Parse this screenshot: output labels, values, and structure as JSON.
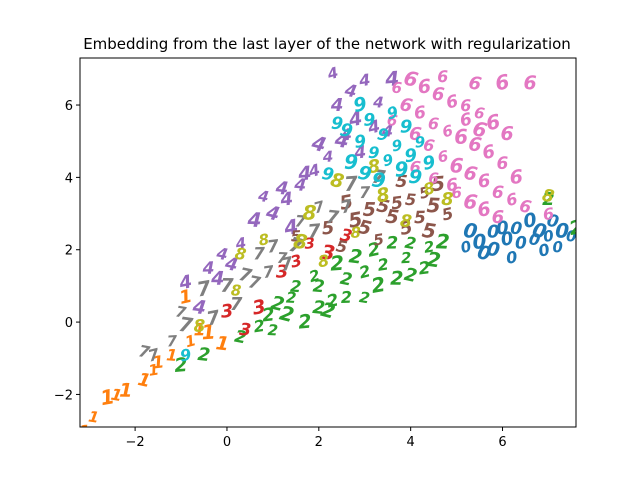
{
  "chart_data": {
    "type": "scatter",
    "title": "Embedding from the last layer of the network with regularization",
    "xlabel": "",
    "ylabel": "",
    "xlim": [
      -3.2,
      7.6
    ],
    "ylim": [
      -2.9,
      7.3
    ],
    "xticks": [
      -2,
      0,
      2,
      4,
      6
    ],
    "yticks": [
      -2,
      0,
      2,
      4,
      6
    ],
    "tick_labels_x": [
      "−2",
      "0",
      "2",
      "4",
      "6"
    ],
    "tick_labels_y": [
      "−2",
      "0",
      "2",
      "4",
      "6"
    ],
    "grid": false,
    "marker": "digit glyphs",
    "colors": {
      "0": "#1f77b4",
      "1": "#ff7f0e",
      "2": "#2ca02c",
      "3": "#d62728",
      "4": "#9467bd",
      "5": "#8c564b",
      "6": "#e377c2",
      "7": "#7f7f7f",
      "8": "#bcbd22",
      "9": "#17becf"
    },
    "series": [
      {
        "label": "0",
        "points": [
          [
            5.2,
            2.1
          ],
          [
            5.5,
            2.2
          ],
          [
            5.8,
            2.0
          ],
          [
            6.1,
            2.3
          ],
          [
            6.4,
            2.2
          ],
          [
            6.7,
            2.3
          ],
          [
            7.0,
            2.4
          ],
          [
            7.3,
            2.5
          ],
          [
            5.6,
            1.9
          ],
          [
            6.0,
            2.6
          ],
          [
            6.3,
            2.6
          ],
          [
            6.9,
            2.0
          ],
          [
            7.2,
            2.1
          ],
          [
            5.3,
            2.5
          ],
          [
            6.6,
            2.8
          ],
          [
            5.8,
            2.5
          ],
          [
            7.1,
            2.8
          ],
          [
            6.2,
            1.8
          ],
          [
            7.5,
            2.4
          ],
          [
            6.8,
            2.5
          ]
        ]
      },
      {
        "label": "1",
        "points": [
          [
            -3.1,
            -3.0
          ],
          [
            -2.9,
            -2.6
          ],
          [
            -2.6,
            -2.1
          ],
          [
            -2.2,
            -1.9
          ],
          [
            -1.8,
            -1.6
          ],
          [
            -1.5,
            -1.1
          ],
          [
            -1.2,
            -0.9
          ],
          [
            -0.8,
            -0.5
          ],
          [
            -0.4,
            -0.3
          ],
          [
            -0.1,
            -0.6
          ],
          [
            -0.9,
            0.7
          ],
          [
            -0.6,
            -0.2
          ],
          [
            -2.4,
            -2.0
          ],
          [
            -1.6,
            -1.3
          ]
        ]
      },
      {
        "label": "2",
        "points": [
          [
            0.3,
            -0.4
          ],
          [
            0.7,
            -0.1
          ],
          [
            1.0,
            -0.2
          ],
          [
            1.3,
            0.2
          ],
          [
            1.7,
            0.0
          ],
          [
            2.0,
            0.4
          ],
          [
            2.3,
            0.6
          ],
          [
            2.6,
            0.7
          ],
          [
            3.0,
            0.7
          ],
          [
            3.3,
            1.0
          ],
          [
            3.7,
            1.2
          ],
          [
            4.0,
            1.3
          ],
          [
            4.3,
            1.5
          ],
          [
            1.5,
            1.0
          ],
          [
            1.9,
            1.3
          ],
          [
            2.4,
            1.6
          ],
          [
            2.8,
            1.8
          ],
          [
            3.2,
            2.0
          ],
          [
            3.6,
            2.2
          ],
          [
            4.0,
            2.2
          ],
          [
            4.4,
            2.1
          ],
          [
            4.7,
            2.2
          ],
          [
            1.1,
            0.5
          ],
          [
            0.9,
            0.2
          ],
          [
            2.0,
            1.0
          ],
          [
            3.0,
            1.4
          ],
          [
            3.9,
            1.8
          ],
          [
            4.5,
            1.7
          ],
          [
            7.6,
            2.6
          ],
          [
            7.0,
            3.4
          ],
          [
            2.6,
            1.2
          ],
          [
            3.4,
            1.6
          ],
          [
            1.4,
            0.7
          ],
          [
            2.2,
            0.3
          ],
          [
            -1.0,
            -1.2
          ],
          [
            -0.5,
            -0.9
          ]
        ]
      },
      {
        "label": "3",
        "points": [
          [
            0.0,
            0.3
          ],
          [
            0.4,
            -0.2
          ],
          [
            1.5,
            1.7
          ],
          [
            1.8,
            2.2
          ],
          [
            2.2,
            1.9
          ],
          [
            0.7,
            0.4
          ],
          [
            1.2,
            1.4
          ],
          [
            2.6,
            2.4
          ]
        ]
      },
      {
        "label": "4",
        "points": [
          [
            -0.6,
            0.4
          ],
          [
            -0.9,
            1.1
          ],
          [
            -0.4,
            1.5
          ],
          [
            -0.1,
            1.9
          ],
          [
            0.3,
            2.2
          ],
          [
            0.6,
            2.8
          ],
          [
            1.0,
            3.0
          ],
          [
            1.3,
            3.4
          ],
          [
            1.6,
            3.8
          ],
          [
            1.9,
            4.2
          ],
          [
            2.2,
            4.6
          ],
          [
            2.5,
            5.0
          ],
          [
            2.8,
            5.6
          ],
          [
            2.4,
            6.0
          ],
          [
            2.7,
            6.4
          ],
          [
            3.0,
            6.7
          ],
          [
            3.3,
            6.1
          ],
          [
            2.0,
            4.9
          ],
          [
            1.7,
            4.1
          ],
          [
            1.2,
            3.7
          ],
          [
            3.2,
            5.4
          ],
          [
            2.6,
            5.2
          ],
          [
            0.8,
            3.5
          ],
          [
            1.4,
            2.6
          ],
          [
            -0.2,
            1.2
          ],
          [
            0.1,
            1.6
          ],
          [
            2.9,
            4.7
          ],
          [
            3.5,
            5.3
          ],
          [
            2.3,
            6.9
          ],
          [
            3.6,
            6.7
          ]
        ]
      },
      {
        "label": "5",
        "points": [
          [
            2.8,
            2.8
          ],
          [
            3.1,
            3.1
          ],
          [
            3.4,
            3.2
          ],
          [
            3.7,
            3.3
          ],
          [
            4.0,
            3.4
          ],
          [
            4.3,
            3.6
          ],
          [
            4.6,
            3.8
          ],
          [
            3.6,
            2.9
          ],
          [
            3.9,
            2.6
          ],
          [
            4.2,
            2.9
          ],
          [
            2.5,
            2.1
          ],
          [
            3.3,
            2.3
          ],
          [
            4.5,
            3.2
          ],
          [
            3.0,
            2.6
          ],
          [
            2.2,
            2.6
          ],
          [
            3.8,
            3.9
          ],
          [
            4.8,
            3.0
          ],
          [
            1.5,
            2.4
          ],
          [
            4.4,
            2.5
          ],
          [
            2.6,
            3.3
          ]
        ]
      },
      {
        "label": "6",
        "points": [
          [
            3.7,
            6.5
          ],
          [
            4.0,
            6.7
          ],
          [
            4.3,
            6.5
          ],
          [
            4.6,
            6.3
          ],
          [
            4.9,
            6.1
          ],
          [
            5.2,
            6.0
          ],
          [
            5.5,
            5.8
          ],
          [
            5.8,
            5.5
          ],
          [
            6.1,
            5.2
          ],
          [
            3.9,
            6.0
          ],
          [
            4.2,
            5.8
          ],
          [
            4.5,
            5.5
          ],
          [
            4.8,
            5.3
          ],
          [
            5.1,
            5.1
          ],
          [
            5.4,
            4.9
          ],
          [
            5.7,
            4.7
          ],
          [
            6.0,
            4.4
          ],
          [
            4.4,
            4.9
          ],
          [
            4.7,
            4.6
          ],
          [
            5.0,
            4.3
          ],
          [
            5.3,
            4.1
          ],
          [
            5.6,
            3.9
          ],
          [
            5.9,
            3.6
          ],
          [
            6.2,
            3.4
          ],
          [
            5.0,
            3.6
          ],
          [
            5.3,
            3.3
          ],
          [
            5.6,
            3.1
          ],
          [
            5.9,
            2.9
          ],
          [
            6.5,
            3.2
          ],
          [
            7.0,
            3.0
          ],
          [
            4.5,
            4.0
          ],
          [
            5.5,
            5.3
          ],
          [
            6.3,
            4.0
          ],
          [
            4.1,
            5.2
          ],
          [
            5.2,
            5.6
          ],
          [
            4.7,
            6.8
          ],
          [
            3.6,
            5.6
          ],
          [
            6.0,
            6.6
          ],
          [
            6.6,
            6.6
          ],
          [
            5.4,
            6.6
          ],
          [
            4.9,
            3.8
          ],
          [
            4.1,
            4.3
          ]
        ]
      },
      {
        "label": "7",
        "points": [
          [
            -1.6,
            -0.9
          ],
          [
            -1.2,
            -0.5
          ],
          [
            -0.9,
            -0.1
          ],
          [
            -0.3,
            0.1
          ],
          [
            0.2,
            0.5
          ],
          [
            0.6,
            1.1
          ],
          [
            0.9,
            1.4
          ],
          [
            1.2,
            1.8
          ],
          [
            1.5,
            2.1
          ],
          [
            1.9,
            2.5
          ],
          [
            2.3,
            2.9
          ],
          [
            2.6,
            3.2
          ],
          [
            3.0,
            3.6
          ],
          [
            -1.0,
            0.3
          ],
          [
            -0.5,
            0.9
          ],
          [
            0.0,
            1.0
          ],
          [
            0.4,
            1.3
          ],
          [
            1.0,
            2.1
          ],
          [
            1.6,
            2.8
          ],
          [
            2.0,
            3.2
          ],
          [
            2.7,
            3.8
          ],
          [
            3.3,
            4.0
          ],
          [
            1.3,
            1.6
          ],
          [
            0.7,
            1.9
          ],
          [
            -1.8,
            -0.8
          ]
        ]
      },
      {
        "label": "8",
        "points": [
          [
            -0.6,
            -0.1
          ],
          [
            0.3,
            1.9
          ],
          [
            0.8,
            2.3
          ],
          [
            1.8,
            3.0
          ],
          [
            2.4,
            3.9
          ],
          [
            3.2,
            4.3
          ],
          [
            3.9,
            2.8
          ],
          [
            4.4,
            3.7
          ],
          [
            2.8,
            2.5
          ],
          [
            1.6,
            2.2
          ],
          [
            3.4,
            3.5
          ],
          [
            4.8,
            3.4
          ],
          [
            7.0,
            3.5
          ],
          [
            2.1,
            1.7
          ],
          [
            0.2,
            0.9
          ]
        ]
      },
      {
        "label": "9",
        "points": [
          [
            2.6,
            5.3
          ],
          [
            2.9,
            5.0
          ],
          [
            3.2,
            4.7
          ],
          [
            3.5,
            4.5
          ],
          [
            3.8,
            4.2
          ],
          [
            4.1,
            4.0
          ],
          [
            4.4,
            4.4
          ],
          [
            3.1,
            5.6
          ],
          [
            3.4,
            5.2
          ],
          [
            3.7,
            4.9
          ],
          [
            2.7,
            4.4
          ],
          [
            3.0,
            4.1
          ],
          [
            4.0,
            4.6
          ],
          [
            2.4,
            5.5
          ],
          [
            3.6,
            5.8
          ],
          [
            4.2,
            5.0
          ],
          [
            3.3,
            3.9
          ],
          [
            2.9,
            6.0
          ],
          [
            3.9,
            5.4
          ],
          [
            2.2,
            4.1
          ],
          [
            -0.9,
            -0.9
          ]
        ]
      }
    ]
  }
}
